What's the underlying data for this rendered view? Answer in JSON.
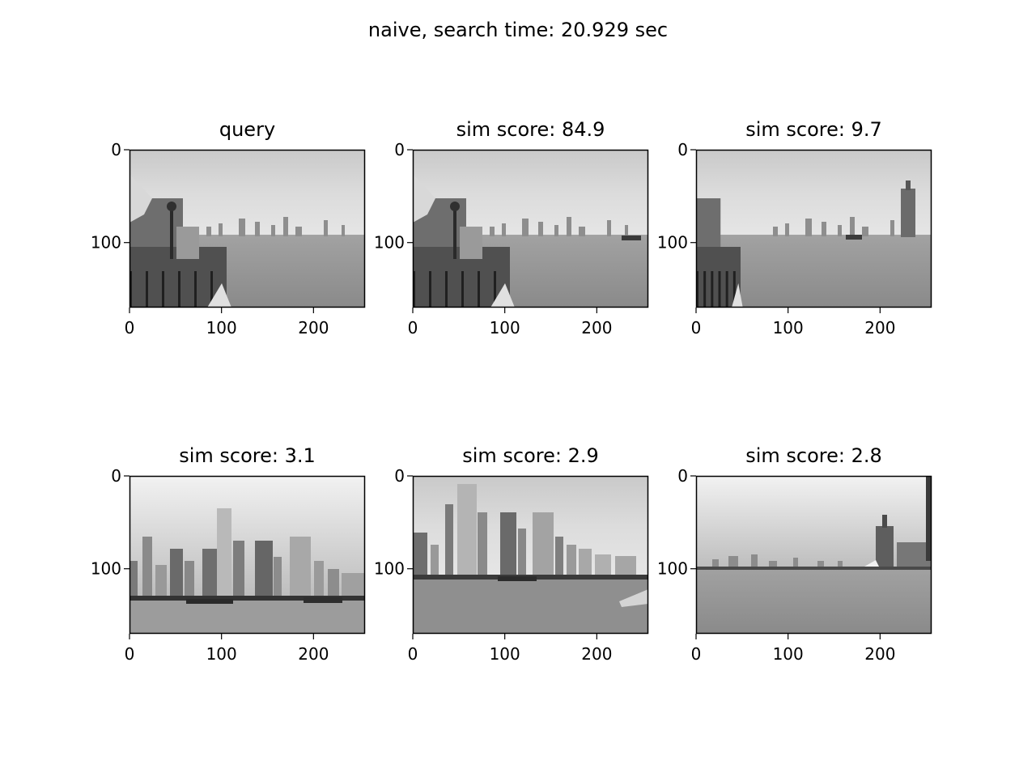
{
  "figure": {
    "suptitle": "naive, search time: 20.929 sec"
  },
  "chart_data": [
    {
      "type": "image",
      "title": "query",
      "scene": "harbor-left-railing",
      "xticks": [
        "0",
        "100",
        "200"
      ],
      "yticks": [
        "0",
        "100"
      ],
      "xlim": [
        0,
        256
      ],
      "ylim": [
        170,
        0
      ],
      "colormap": "gray"
    },
    {
      "type": "image",
      "title": "sim score: 84.9",
      "scene": "harbor-left-railing-boat",
      "xticks": [
        "0",
        "100",
        "200"
      ],
      "yticks": [
        "0",
        "100"
      ],
      "xlim": [
        0,
        256
      ],
      "ylim": [
        170,
        0
      ],
      "colormap": "gray"
    },
    {
      "type": "image",
      "title": "sim score: 9.7",
      "scene": "harbor-right-tower",
      "xticks": [
        "0",
        "100",
        "200"
      ],
      "yticks": [
        "0",
        "100"
      ],
      "xlim": [
        0,
        256
      ],
      "ylim": [
        170,
        0
      ],
      "colormap": "gray"
    },
    {
      "type": "image",
      "title": "sim score: 3.1",
      "scene": "skyline-dense",
      "xticks": [
        "0",
        "100",
        "200"
      ],
      "yticks": [
        "0",
        "100"
      ],
      "xlim": [
        0,
        256
      ],
      "ylim": [
        170,
        0
      ],
      "colormap": "gray"
    },
    {
      "type": "image",
      "title": "sim score: 2.9",
      "scene": "skyline-tall-tower",
      "xticks": [
        "0",
        "100",
        "200"
      ],
      "yticks": [
        "0",
        "100"
      ],
      "xlim": [
        0,
        256
      ],
      "ylim": [
        170,
        0
      ],
      "colormap": "gray"
    },
    {
      "type": "image",
      "title": "sim score: 2.8",
      "scene": "river-wide-right-tower",
      "xticks": [
        "0",
        "100",
        "200"
      ],
      "yticks": [
        "0",
        "100"
      ],
      "xlim": [
        0,
        256
      ],
      "ylim": [
        170,
        0
      ],
      "colormap": "gray"
    }
  ]
}
